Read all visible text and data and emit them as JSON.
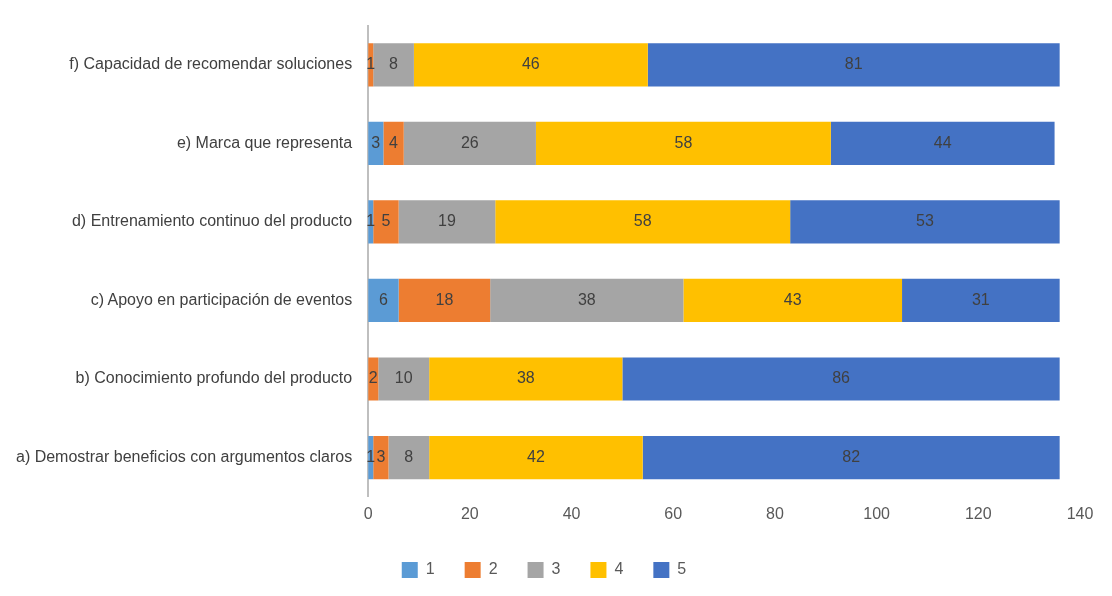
{
  "chart_data": {
    "type": "bar",
    "orientation": "horizontal",
    "stacked": true,
    "categories": [
      "f) Capacidad de recomendar soluciones",
      "e) Marca que representa",
      "d) Entrenamiento continuo del producto",
      "c) Apoyo en participación de eventos",
      "b) Conocimiento profundo del producto",
      "a) Demostrar beneficios con argumentos claros"
    ],
    "series": [
      {
        "name": "1",
        "color": "#5b9bd5",
        "values": [
          null,
          3,
          1,
          6,
          null,
          1
        ]
      },
      {
        "name": "2",
        "color": "#ed7d31",
        "values": [
          1,
          4,
          5,
          18,
          2,
          3
        ]
      },
      {
        "name": "3",
        "color": "#a5a5a5",
        "values": [
          8,
          26,
          19,
          38,
          10,
          8
        ]
      },
      {
        "name": "4",
        "color": "#ffc000",
        "values": [
          46,
          58,
          58,
          43,
          38,
          42
        ]
      },
      {
        "name": "5",
        "color": "#4472c4",
        "values": [
          81,
          44,
          53,
          31,
          86,
          82
        ]
      }
    ],
    "xlim": [
      0,
      140
    ],
    "xticks": [
      0,
      20,
      40,
      60,
      80,
      100,
      120,
      140
    ],
    "grid": false,
    "legend": "bottom",
    "data_labels": true
  }
}
